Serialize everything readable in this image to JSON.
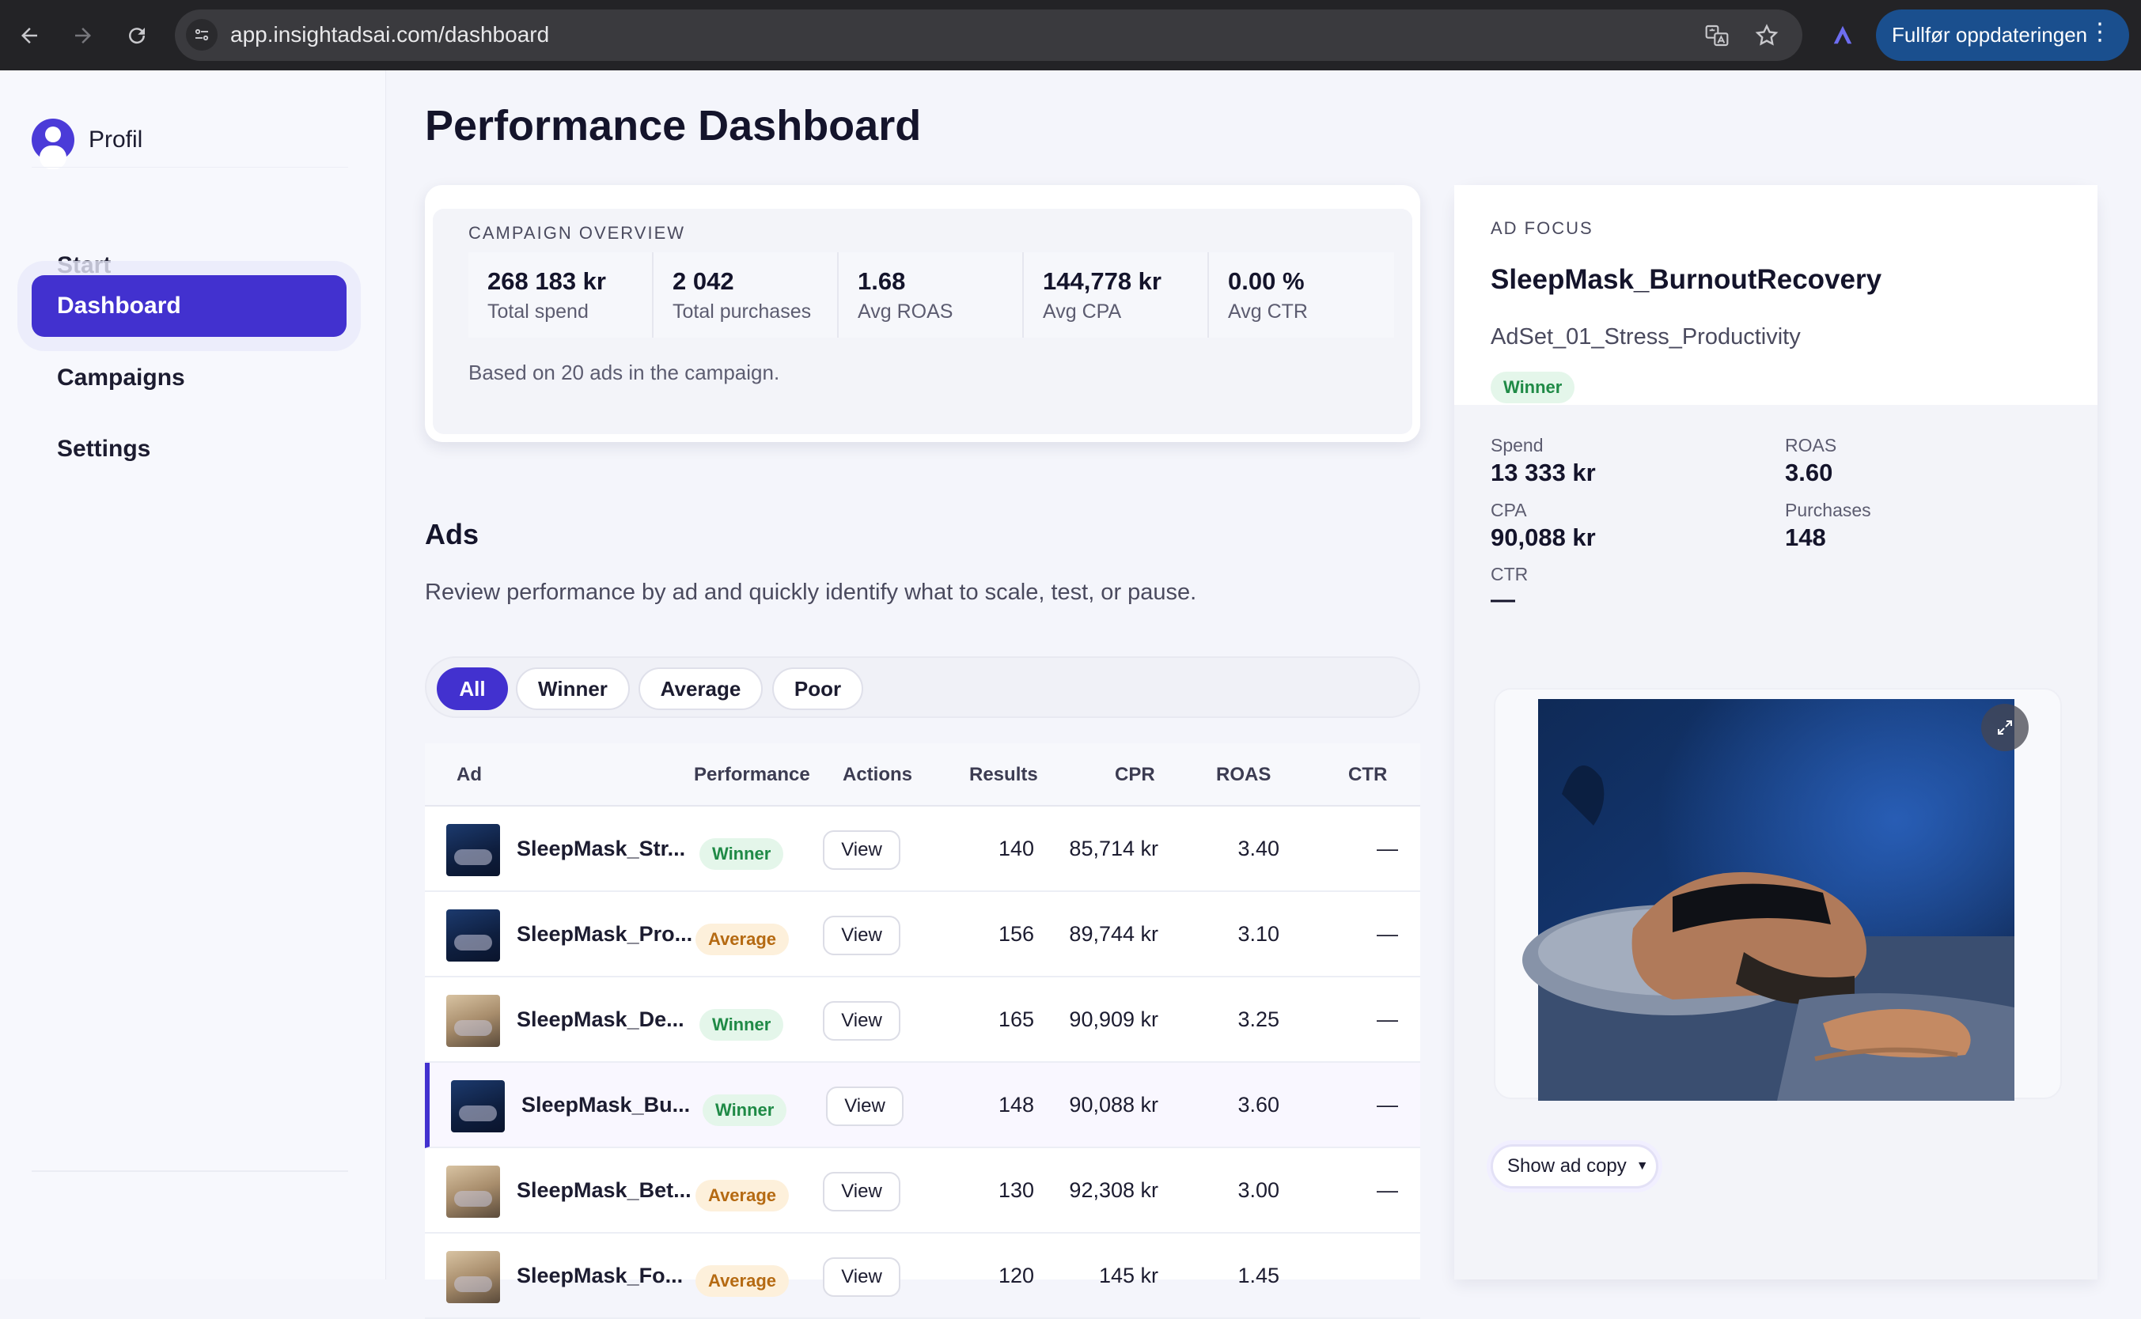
{
  "browser": {
    "url": "app.insightadsai.com/dashboard",
    "update_label": "Fullfør oppdateringen"
  },
  "sidebar": {
    "profile_label": "Profil",
    "items": [
      {
        "label": "Start",
        "active": false
      },
      {
        "label": "Dashboard",
        "active": true
      },
      {
        "label": "Campaigns",
        "active": false
      },
      {
        "label": "Settings",
        "active": false
      }
    ]
  },
  "page": {
    "title": "Performance Dashboard"
  },
  "overview": {
    "section_label": "CAMPAIGN OVERVIEW",
    "metrics": [
      {
        "value": "268 183 kr",
        "label": "Total spend"
      },
      {
        "value": "2 042",
        "label": "Total purchases"
      },
      {
        "value": "1.68",
        "label": "Avg ROAS"
      },
      {
        "value": "144,778 kr",
        "label": "Avg CPA"
      },
      {
        "value": "0.00 %",
        "label": "Avg CTR"
      }
    ],
    "note": "Based on 20 ads in the campaign."
  },
  "ads": {
    "title": "Ads",
    "subtitle": "Review performance by ad and quickly identify what to scale, test, or pause.",
    "filters": [
      {
        "label": "All",
        "active": true
      },
      {
        "label": "Winner",
        "active": false
      },
      {
        "label": "Average",
        "active": false
      },
      {
        "label": "Poor",
        "active": false
      }
    ],
    "columns": {
      "ad": "Ad",
      "performance": "Performance",
      "actions": "Actions",
      "results": "Results",
      "cpr": "CPR",
      "roas": "ROAS",
      "ctr": "CTR"
    },
    "rows": [
      {
        "name": "SleepMask_Str...",
        "performance": "Winner",
        "action": "View",
        "results": "140",
        "cpr": "85,714 kr",
        "roas": "3.40",
        "ctr": "—",
        "thumb": "blue",
        "selected": false
      },
      {
        "name": "SleepMask_Pro...",
        "performance": "Average",
        "action": "View",
        "results": "156",
        "cpr": "89,744 kr",
        "roas": "3.10",
        "ctr": "—",
        "thumb": "blue",
        "selected": false
      },
      {
        "name": "SleepMask_De...",
        "performance": "Winner",
        "action": "View",
        "results": "165",
        "cpr": "90,909 kr",
        "roas": "3.25",
        "ctr": "—",
        "thumb": "warm",
        "selected": false
      },
      {
        "name": "SleepMask_Bu...",
        "performance": "Winner",
        "action": "View",
        "results": "148",
        "cpr": "90,088 kr",
        "roas": "3.60",
        "ctr": "—",
        "thumb": "blue",
        "selected": true
      },
      {
        "name": "SleepMask_Bet...",
        "performance": "Average",
        "action": "View",
        "results": "130",
        "cpr": "92,308 kr",
        "roas": "3.00",
        "ctr": "—",
        "thumb": "warm",
        "selected": false
      },
      {
        "name": "SleepMask_Fo...",
        "performance": "Average",
        "action": "View",
        "results": "120",
        "cpr": "145 kr",
        "roas": "1.45",
        "ctr": "",
        "thumb": "warm",
        "selected": false
      }
    ]
  },
  "focus": {
    "section_label": "AD FOCUS",
    "title": "SleepMask_BurnoutRecovery",
    "adset": "AdSet_01_Stress_Productivity",
    "badge": "Winner",
    "stats": {
      "spend_label": "Spend",
      "spend": "13 333 kr",
      "roas_label": "ROAS",
      "roas": "3.60",
      "cpa_label": "CPA",
      "cpa": "90,088 kr",
      "purchases_label": "Purchases",
      "purchases": "148",
      "ctr_label": "CTR",
      "ctr": "—"
    },
    "show_copy_label": "Show ad copy"
  },
  "colors": {
    "accent": "#4231cf",
    "winner_bg": "#e4f6ea",
    "winner_text": "#1f8a46",
    "average_bg": "#fdf0db",
    "average_text": "#b56a12"
  }
}
